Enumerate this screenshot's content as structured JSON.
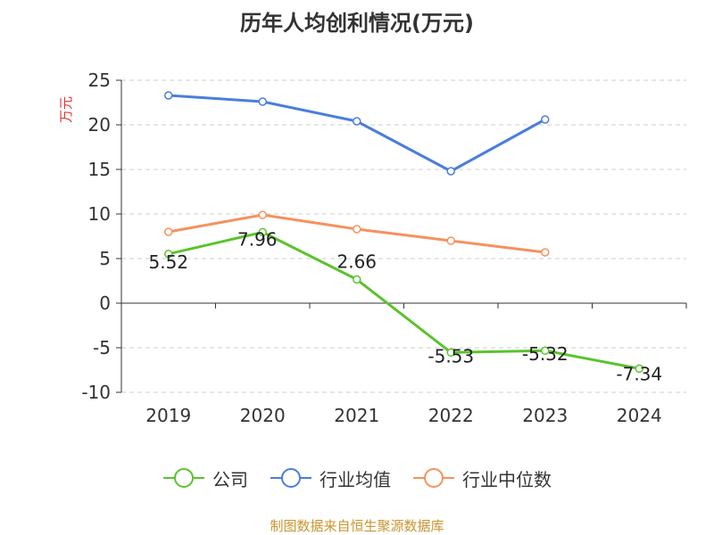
{
  "chart_data": {
    "type": "line",
    "title": "历年人均创利情况(万元)",
    "ylabel": "万元",
    "xlabel": "",
    "categories": [
      "2019",
      "2020",
      "2021",
      "2022",
      "2023",
      "2024"
    ],
    "ylim": [
      -10,
      25
    ],
    "yticks": [
      25,
      20,
      15,
      10,
      5,
      0,
      -5,
      -10
    ],
    "grid": true,
    "legend_position": "bottom",
    "series": [
      {
        "name": "公司",
        "color": "#5cc22e",
        "values": [
          5.52,
          7.96,
          2.66,
          -5.53,
          -5.32,
          -7.34
        ],
        "labels": [
          "5.52",
          "7.96",
          "2.66",
          "-5.53",
          "-5.32",
          "-7.34"
        ]
      },
      {
        "name": "行业均值",
        "color": "#4a7edb",
        "values": [
          23.3,
          22.6,
          20.4,
          14.8,
          20.6,
          null
        ]
      },
      {
        "name": "行业中位数",
        "color": "#f5925e",
        "values": [
          8.0,
          9.9,
          8.3,
          7.0,
          5.7,
          null
        ]
      }
    ]
  },
  "source": "制图数据来自恒生聚源数据库"
}
